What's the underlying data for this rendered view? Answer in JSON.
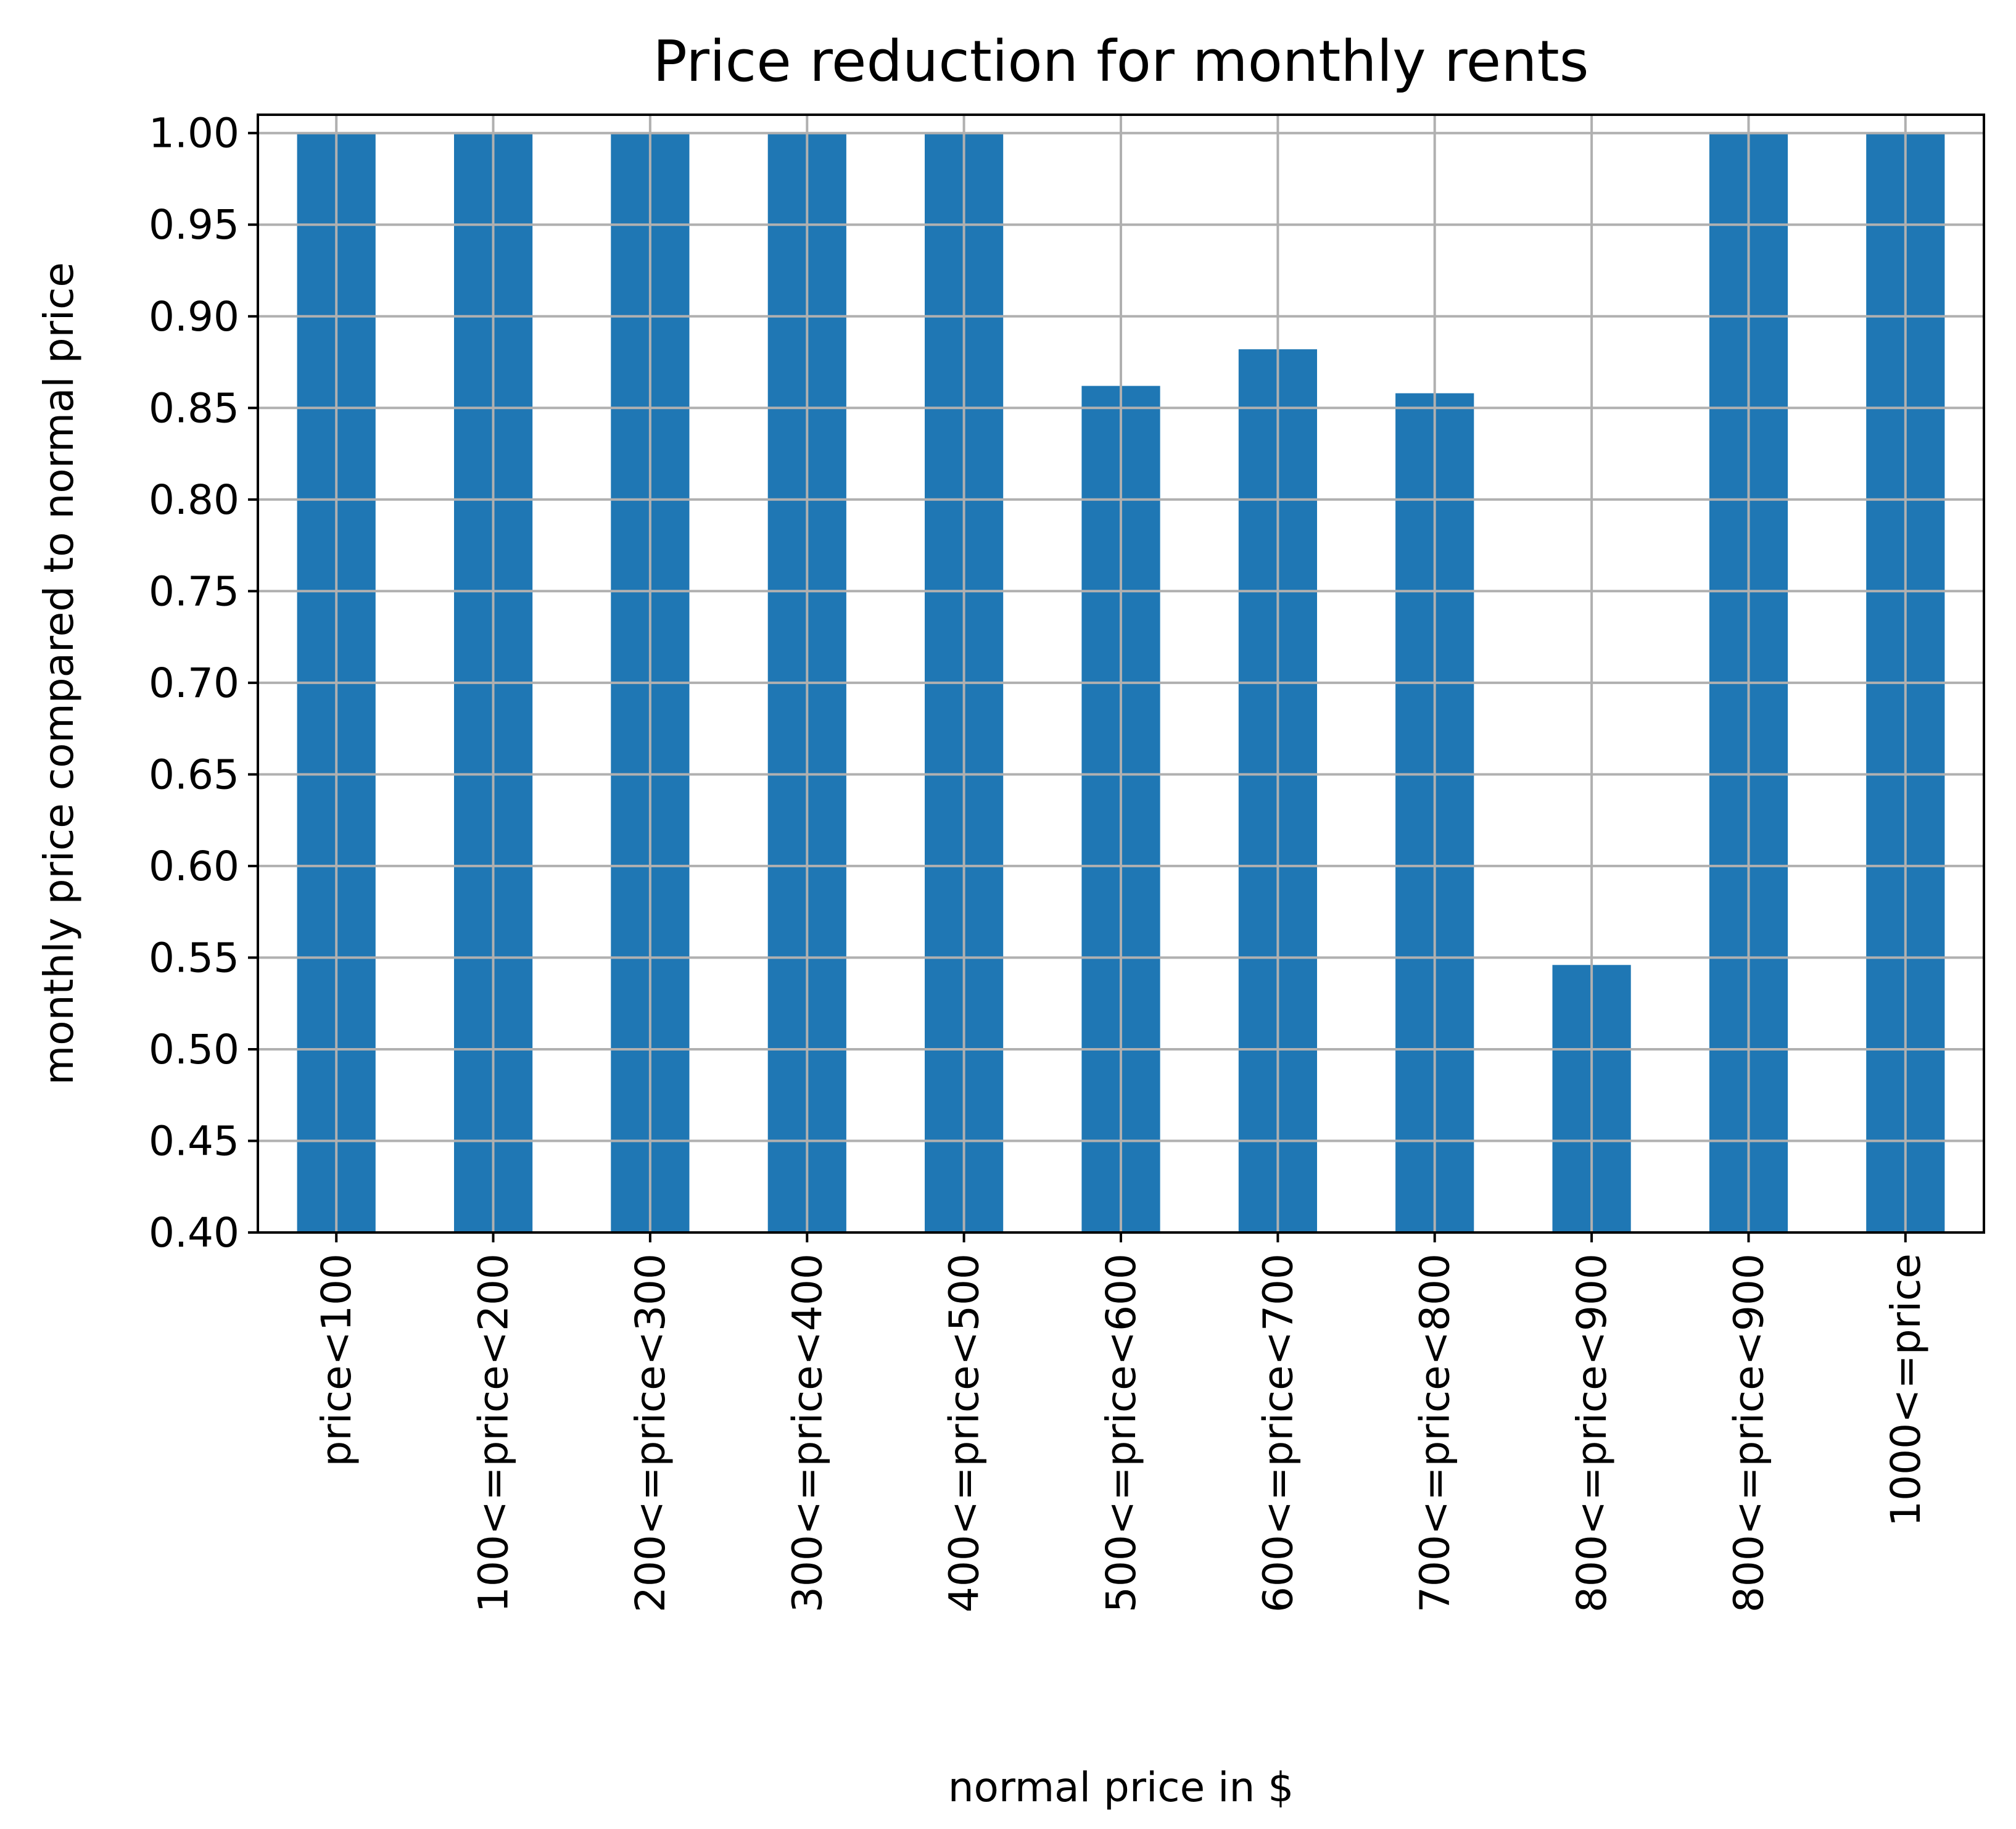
{
  "chart_data": {
    "type": "bar",
    "title": "Price reduction for monthly rents",
    "xlabel": "normal price in $",
    "ylabel": "monthly price compared to normal price",
    "categories": [
      "price<100",
      "100<=price<200",
      "200<=price<300",
      "300<=price<400",
      "400<=price<500",
      "500<=price<600",
      "600<=price<700",
      "700<=price<800",
      "800<=price<900",
      "800<=price<900",
      "1000<=price"
    ],
    "values": [
      1.0,
      1.0,
      1.0,
      1.0,
      1.0,
      0.862,
      0.882,
      0.858,
      0.546,
      1.0,
      1.0
    ],
    "ylim": [
      0.4,
      1.01
    ],
    "yticks": [
      "0.40",
      "0.45",
      "0.50",
      "0.55",
      "0.60",
      "0.65",
      "0.70",
      "0.75",
      "0.80",
      "0.85",
      "0.90",
      "0.95",
      "1.00"
    ],
    "grid": true,
    "bar_color": "#1f77b4",
    "grid_color": "#b0b0b0"
  }
}
